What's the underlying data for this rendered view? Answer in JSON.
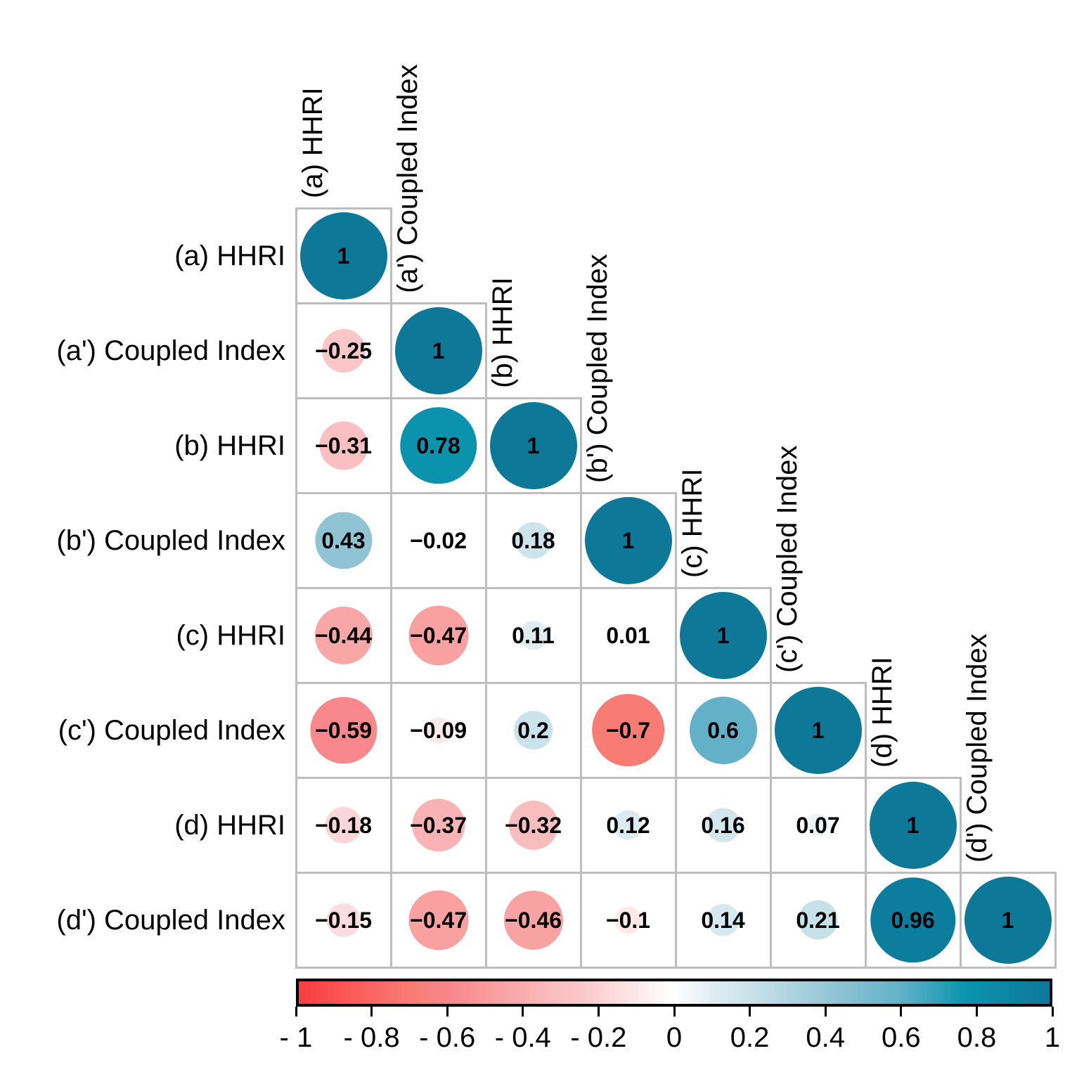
{
  "figure": {
    "background": "#ffffff",
    "title": ""
  },
  "chart_data": {
    "type": "heatmap",
    "subtype": "correlation-matrix-lower-triangle",
    "variables": [
      "(a) HHRI",
      "(a') Coupled Index",
      "(b) HHRI",
      "(b') Coupled Index",
      "(c) HHRI",
      "(c') Coupled Index",
      "(d) HHRI",
      "(d') Coupled Index"
    ],
    "row_labels": [
      "(a) HHRI",
      "(a') Coupled Index",
      "(b) HHRI",
      "(b') Coupled Index",
      "(c) HHRI",
      "(c') Coupled Index",
      "(d) HHRI",
      "(d') Coupled Index"
    ],
    "column_labels": [
      "(a) HHRI",
      "(a') Coupled Index",
      "(b) HHRI",
      "(b') Coupled Index",
      "(c) HHRI",
      "(c') Coupled Index",
      "(d) HHRI",
      "(d') Coupled Index"
    ],
    "values": [
      [
        1
      ],
      [
        -0.25,
        1
      ],
      [
        -0.31,
        0.78,
        1
      ],
      [
        0.43,
        -0.02,
        0.18,
        1
      ],
      [
        -0.44,
        -0.47,
        0.11,
        0.01,
        1
      ],
      [
        -0.59,
        -0.09,
        0.2,
        -0.7,
        0.6,
        1
      ],
      [
        -0.18,
        -0.37,
        -0.32,
        0.12,
        0.16,
        0.07,
        1
      ],
      [
        -0.15,
        -0.47,
        -0.46,
        -0.1,
        0.14,
        0.21,
        0.96,
        1
      ]
    ],
    "value_labels": [
      [
        "1"
      ],
      [
        "−0.25",
        "1"
      ],
      [
        "−0.31",
        "0.78",
        "1"
      ],
      [
        "0.43",
        "−0.02",
        "0.18",
        "1"
      ],
      [
        "−0.44",
        "−0.47",
        "0.11",
        "0.01",
        "1"
      ],
      [
        "−0.59",
        "−0.09",
        "0.2",
        "−0.7",
        "0.6",
        "1"
      ],
      [
        "−0.18",
        "−0.37",
        "−0.32",
        "0.12",
        "0.16",
        "0.07",
        "1"
      ],
      [
        "−0.15",
        "−0.47",
        "−0.46",
        "−0.1",
        "0.14",
        "0.21",
        "0.96",
        "1"
      ]
    ],
    "colorbar": {
      "min": -1,
      "max": 1,
      "tick_values": [
        -1,
        -0.8,
        -0.6,
        -0.4,
        -0.2,
        0,
        0.2,
        0.4,
        0.6,
        0.8,
        1
      ],
      "tick_labels": [
        "- 1",
        "- 0.8",
        "- 0.6",
        "- 0.4",
        "- 0.2",
        "0",
        "0.2",
        "0.4",
        "0.6",
        "0.8",
        "1"
      ],
      "border_color": "#000000"
    },
    "color_stops": [
      {
        "v": -1.0,
        "rgb": [
          250,
          60,
          64
        ]
      },
      {
        "v": -0.7,
        "rgb": [
          249,
          124,
          116
        ]
      },
      {
        "v": -0.59,
        "rgb": [
          248,
          136,
          139
        ]
      },
      {
        "v": -0.47,
        "rgb": [
          249,
          160,
          161
        ]
      },
      {
        "v": -0.31,
        "rgb": [
          250,
          191,
          192
        ]
      },
      {
        "v": -0.25,
        "rgb": [
          251,
          198,
          200
        ]
      },
      {
        "v": -0.09,
        "rgb": [
          253,
          235,
          236
        ]
      },
      {
        "v": 0.0,
        "rgb": [
          255,
          255,
          255
        ]
      },
      {
        "v": 0.11,
        "rgb": [
          222,
          236,
          242
        ]
      },
      {
        "v": 0.2,
        "rgb": [
          202,
          226,
          235
        ]
      },
      {
        "v": 0.43,
        "rgb": [
          144,
          196,
          213
        ]
      },
      {
        "v": 0.6,
        "rgb": [
          99,
          177,
          200
        ]
      },
      {
        "v": 0.78,
        "rgb": [
          11,
          147,
          174
        ]
      },
      {
        "v": 1.0,
        "rgb": [
          14,
          120,
          153
        ]
      }
    ],
    "grid_line_color": "#bdbdbd",
    "value_text_color": "#000000",
    "legend_position": "bottom",
    "grid_on": true
  }
}
